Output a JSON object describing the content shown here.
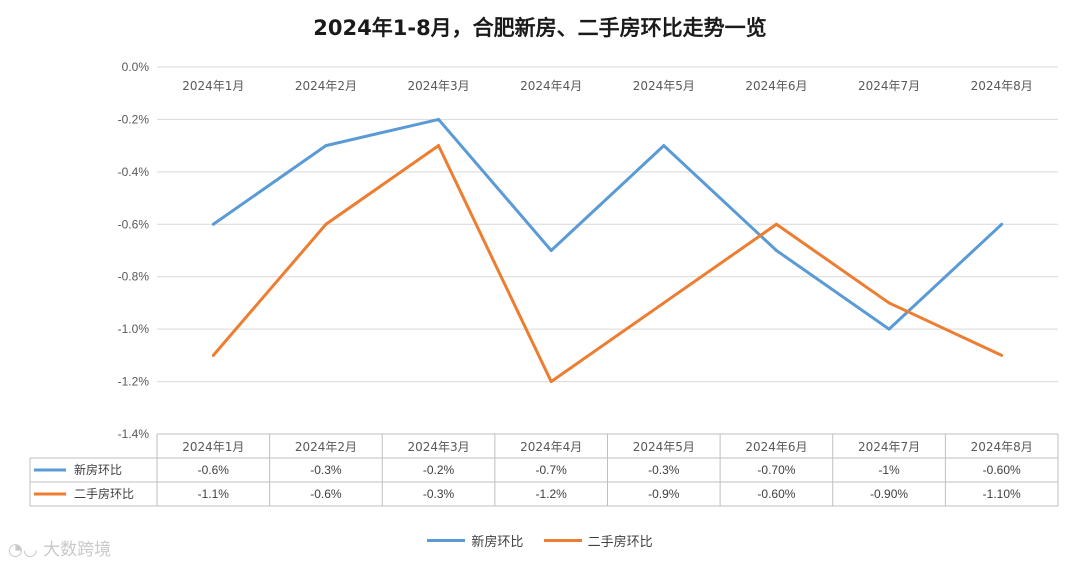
{
  "chart_data": {
    "type": "line",
    "title": "2024年1-8月，合肥新房、二手房环比走势一览",
    "categories": [
      "2024年1月",
      "2024年2月",
      "2024年3月",
      "2024年4月",
      "2024年5月",
      "2024年6月",
      "2024年7月",
      "2024年8月"
    ],
    "y_ticks": [
      "0.0%",
      "-0.2%",
      "-0.4%",
      "-0.6%",
      "-0.8%",
      "-1.0%",
      "-1.2%",
      "-1.4%"
    ],
    "ylim": [
      -1.4,
      0.0
    ],
    "grid": true,
    "legend_position": "bottom",
    "series": [
      {
        "name": "新房环比",
        "color": "#5B9BD5",
        "values": [
          -0.6,
          -0.3,
          -0.2,
          -0.7,
          -0.3,
          -0.7,
          -1.0,
          -0.6
        ],
        "table_labels": [
          "-0.6%",
          "-0.3%",
          "-0.2%",
          "-0.7%",
          "-0.3%",
          "-0.70%",
          "-1%",
          "-0.60%"
        ]
      },
      {
        "name": "二手房环比",
        "color": "#ED7D31",
        "values": [
          -1.1,
          -0.6,
          -0.3,
          -1.2,
          -0.9,
          -0.6,
          -0.9,
          -1.1
        ],
        "table_labels": [
          "-1.1%",
          "-0.6%",
          "-0.3%",
          "-1.2%",
          "-0.9%",
          "-0.60%",
          "-0.90%",
          "-1.10%"
        ]
      }
    ]
  },
  "watermark": "大数跨境"
}
